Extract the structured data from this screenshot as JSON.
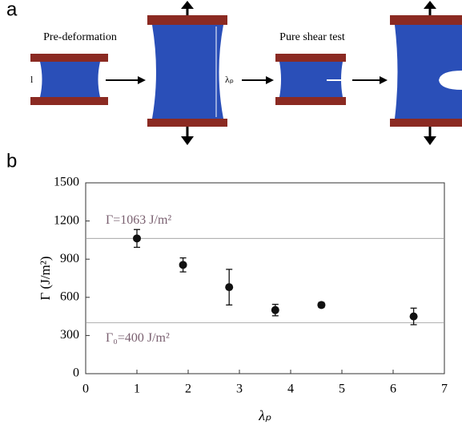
{
  "panel_a": {
    "label": "a",
    "step1": "Pre-deformation",
    "length": "l",
    "stretch": "λₚ",
    "step2": "Pure shear test"
  },
  "panel_b": {
    "label": "b"
  },
  "chart_data": {
    "type": "scatter",
    "x_label": "λₚ",
    "y_label": "Γ (J/m²)",
    "x": [
      1,
      1.9,
      2.8,
      3.7,
      4.6,
      6.4
    ],
    "values": [
      1063,
      855,
      680,
      500,
      540,
      450
    ],
    "errors": [
      70,
      55,
      140,
      45,
      20,
      65
    ],
    "color": "#111111",
    "xlim": [
      0,
      7
    ],
    "xticks": [
      0,
      1,
      2,
      3,
      4,
      5,
      6,
      7
    ],
    "ylim": [
      0,
      1500
    ],
    "yticks": [
      0,
      300,
      600,
      900,
      1200,
      1500
    ],
    "reference_lines": [
      {
        "value": 1063,
        "label": "Γ=1063 J/m²"
      },
      {
        "value": 400,
        "label": "Γ₀=400 J/m²"
      }
    ]
  }
}
